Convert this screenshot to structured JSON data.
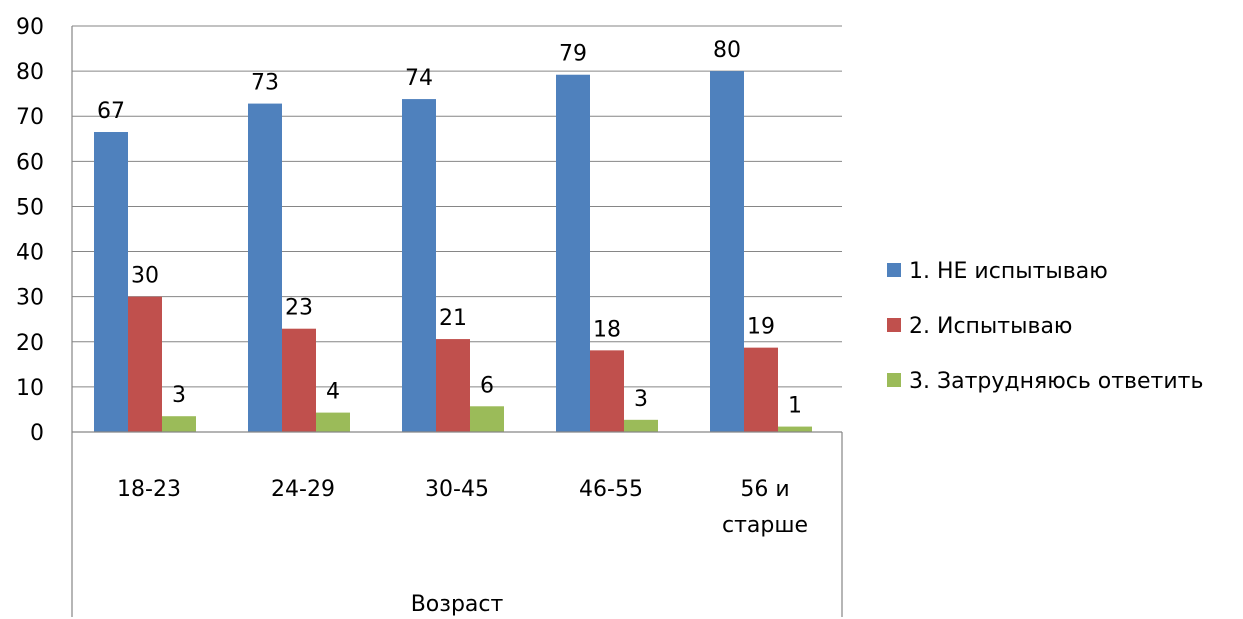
{
  "chart_data": {
    "type": "bar",
    "title": "",
    "xlabel": "Возраст",
    "ylabel": "",
    "ylim": [
      0,
      90
    ],
    "yticks": [
      0,
      10,
      20,
      30,
      40,
      50,
      60,
      70,
      80,
      90
    ],
    "grid": true,
    "legend_position": "right",
    "categories": [
      [
        "18-23"
      ],
      [
        "24-29"
      ],
      [
        "30-45"
      ],
      [
        "46-55"
      ],
      [
        "56 и",
        "старше"
      ]
    ],
    "series": [
      {
        "name": "1. НЕ испытываю",
        "color": "#4F81BD",
        "values": [
          66.5,
          72.8,
          73.8,
          79.2,
          80.0
        ],
        "labels": [
          "67",
          "73",
          "74",
          "79",
          "80"
        ]
      },
      {
        "name": "2. Испытываю",
        "color": "#C0504D",
        "values": [
          30.0,
          22.9,
          20.6,
          18.1,
          18.7
        ],
        "labels": [
          "30",
          "23",
          "21",
          "18",
          "19"
        ]
      },
      {
        "name": "3. Затрудняюсь ответить",
        "color": "#9BBB59",
        "values": [
          3.5,
          4.3,
          5.7,
          2.7,
          1.2
        ],
        "labels": [
          "3",
          "4",
          "6",
          "3",
          "1"
        ]
      }
    ]
  }
}
